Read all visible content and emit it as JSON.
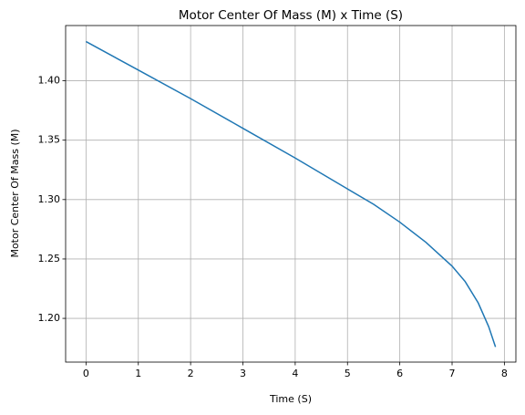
{
  "chart_data": {
    "type": "line",
    "title": "Motor Center Of Mass (M) x Time (S)",
    "xlabel": "Time (S)",
    "ylabel": "Motor Center Of Mass (M)",
    "x": [
      0,
      1,
      2,
      3,
      4,
      5,
      5.5,
      6,
      6.5,
      7,
      7.25,
      7.5,
      7.7,
      7.83
    ],
    "series": [
      {
        "name": "Motor Center Of Mass",
        "color": "#1f77b4",
        "values": [
          1.433,
          1.409,
          1.385,
          1.36,
          1.335,
          1.309,
          1.296,
          1.281,
          1.264,
          1.244,
          1.231,
          1.213,
          1.193,
          1.176
        ]
      }
    ],
    "xlim": [
      -0.39,
      8.22
    ],
    "ylim": [
      1.1632,
      1.4465
    ],
    "xticks": [
      0,
      1,
      2,
      3,
      4,
      5,
      6,
      7,
      8
    ],
    "yticks": [
      {
        "value": 1.2,
        "label": "1.20"
      },
      1.25,
      {
        "value": 1.3,
        "label": "1.30"
      },
      1.35,
      {
        "value": 1.4,
        "label": "1.40"
      }
    ],
    "grid": true
  }
}
